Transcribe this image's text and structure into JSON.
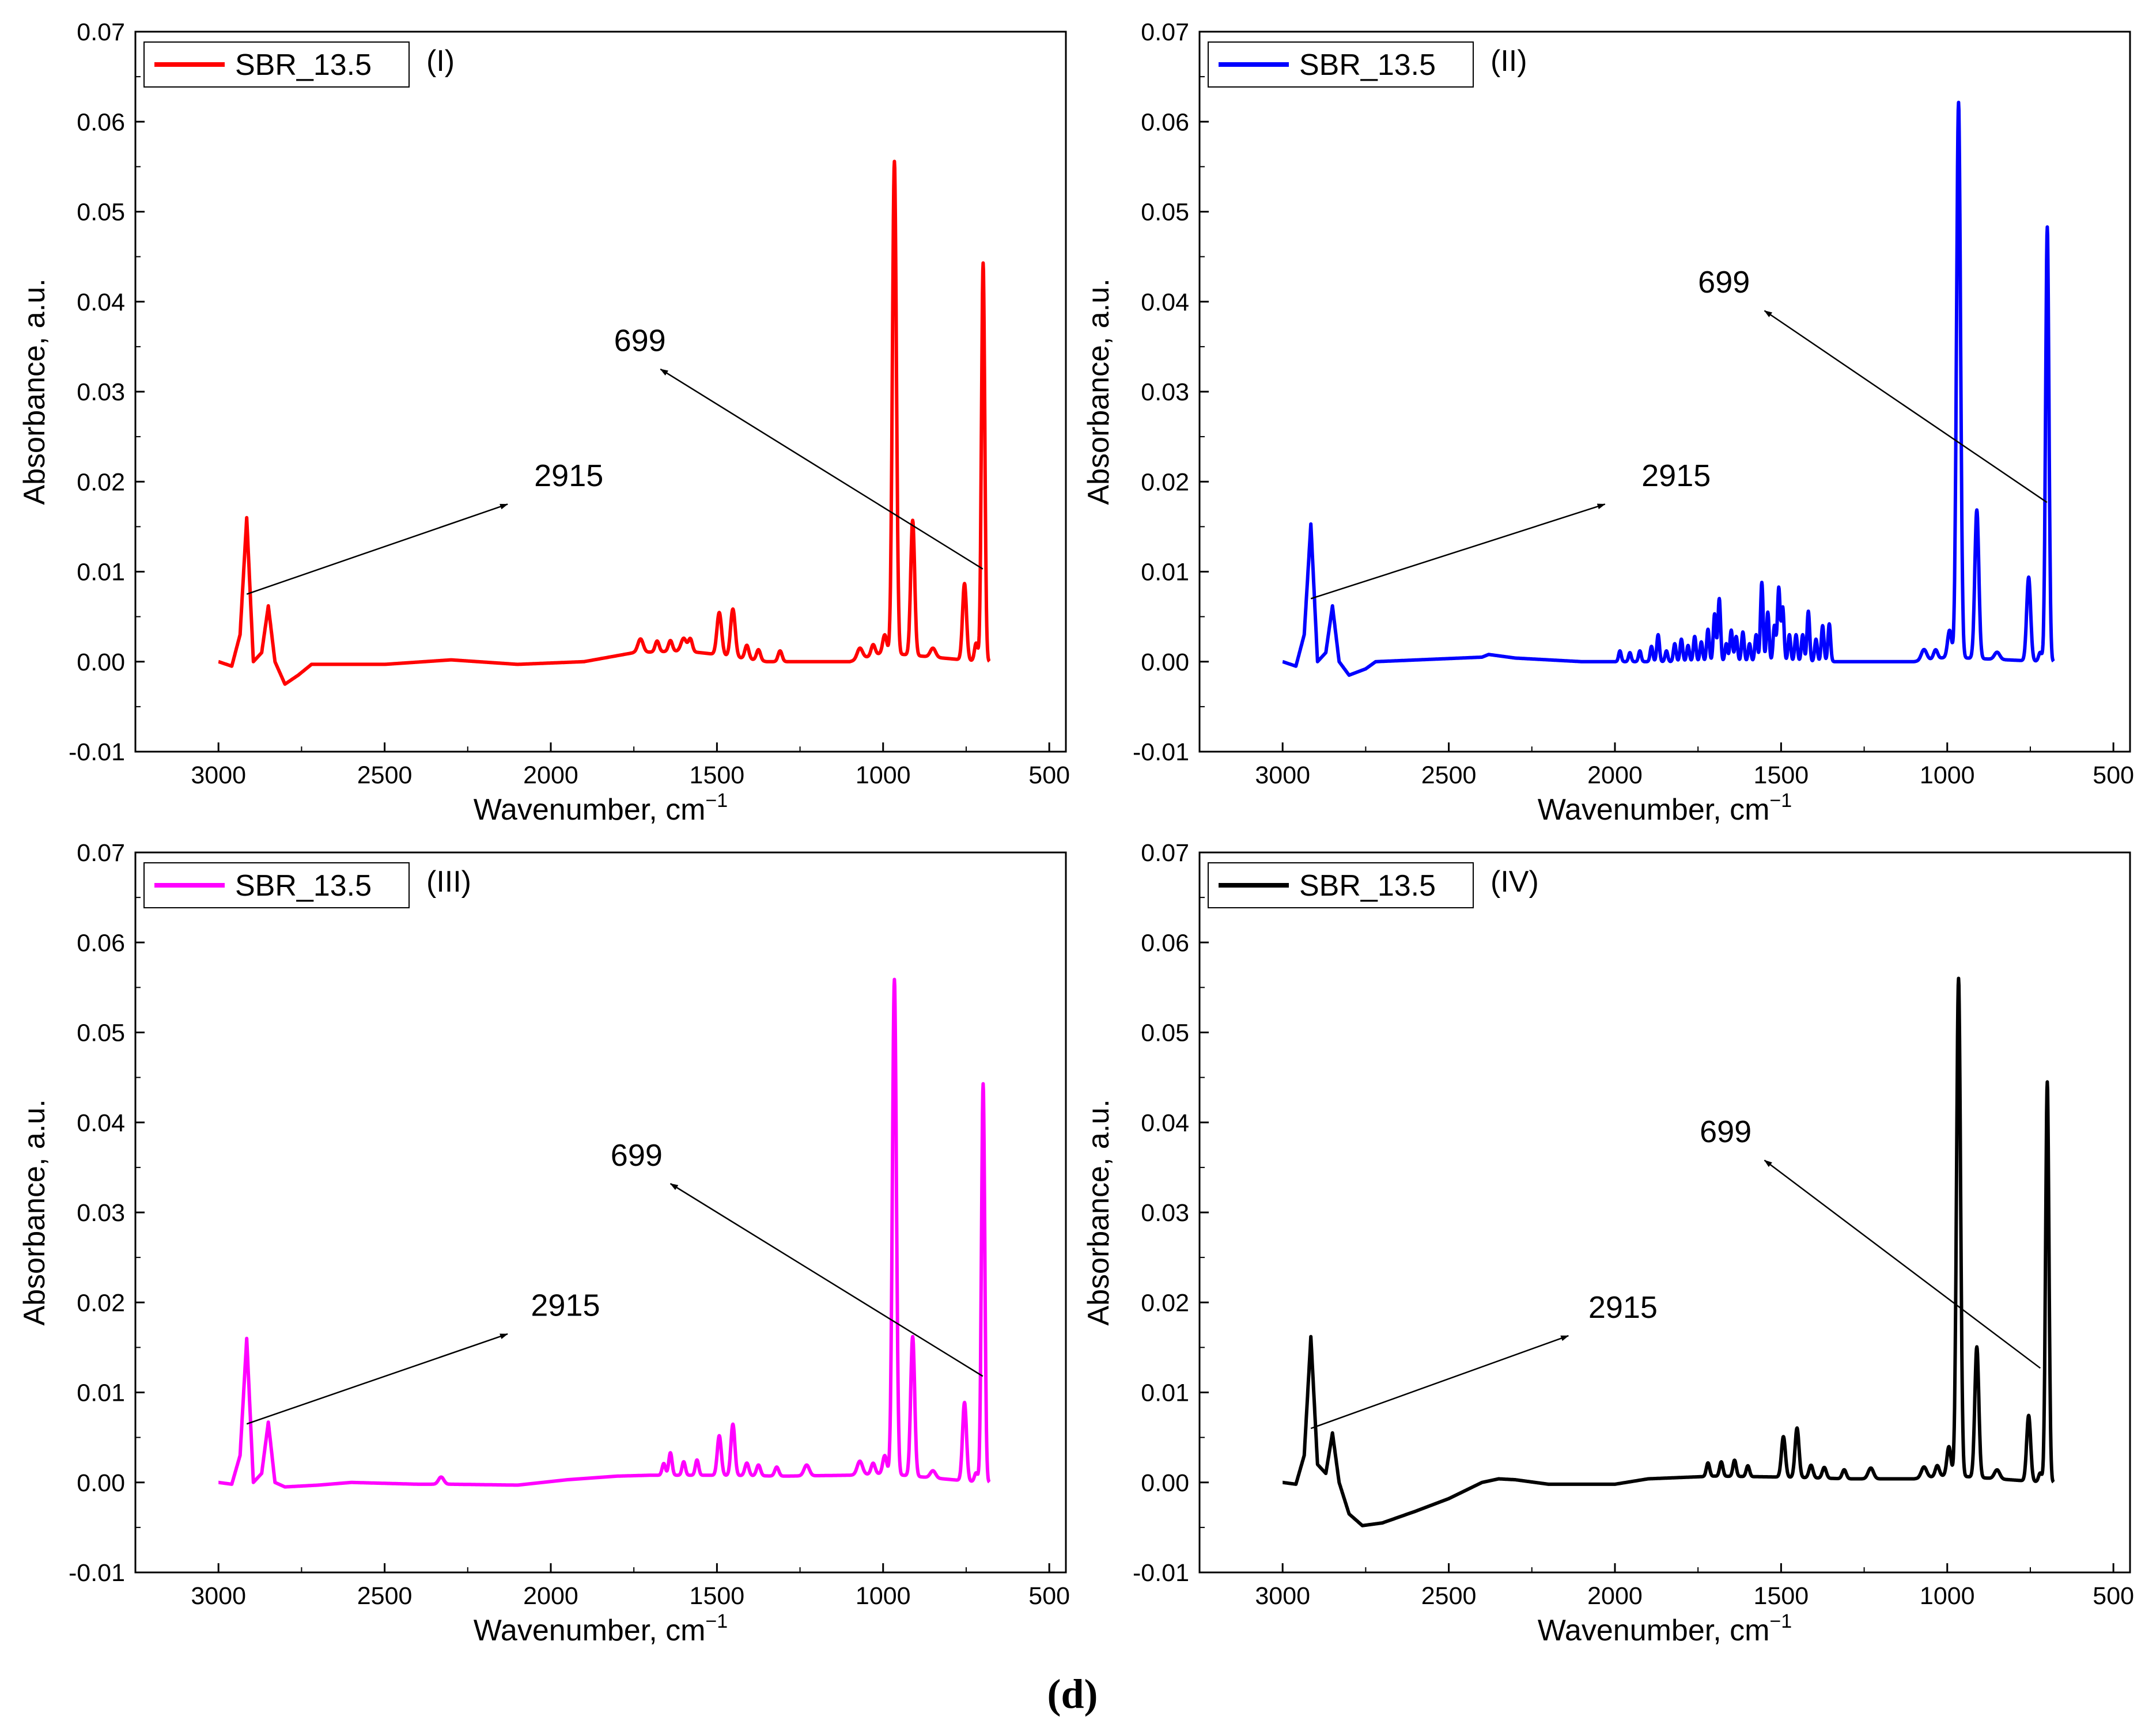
{
  "figure_caption": "(d)",
  "chart_data": [
    {
      "type": "line",
      "panel_tag": "(I)",
      "legend": "SBR_13.5",
      "color": "#ff0000",
      "xlabel": "Wavenumber, cm",
      "xlabel_sup": "−1",
      "ylabel": "Absorbance, a.u.",
      "xlim": [
        3250,
        450
      ],
      "ylim": [
        -0.01,
        0.07
      ],
      "x_ticks": [
        3000,
        2500,
        2000,
        1500,
        1000,
        500
      ],
      "y_ticks": [
        -0.01,
        0.0,
        0.01,
        0.02,
        0.03,
        0.04,
        0.05,
        0.06,
        0.07
      ],
      "y_tick_labels": [
        "-0.01",
        "0.00",
        "0.01",
        "0.02",
        "0.03",
        "0.04",
        "0.05",
        "0.06",
        "0.07"
      ],
      "x_tick_labels": [
        "3000",
        "2500",
        "2000",
        "1500",
        "1000",
        "500"
      ],
      "baseline": [
        [
          3000,
          0
        ],
        [
          2960,
          -0.0005
        ],
        [
          2935,
          0.003
        ],
        [
          2915,
          0.016
        ],
        [
          2895,
          0.0
        ],
        [
          2870,
          0.001
        ],
        [
          2850,
          0.0062
        ],
        [
          2830,
          0.0
        ],
        [
          2800,
          -0.0025
        ],
        [
          2760,
          -0.0015
        ],
        [
          2720,
          -0.0003
        ],
        [
          2500,
          -0.0003
        ],
        [
          2300,
          0.0002
        ],
        [
          2100,
          -0.0003
        ],
        [
          1900,
          0.0
        ],
        [
          1750,
          0.001
        ],
        [
          1600,
          0.0012
        ],
        [
          1500,
          0.0008
        ],
        [
          1350,
          0.0
        ],
        [
          1100,
          0.0
        ],
        [
          1000,
          0.001
        ],
        [
          700,
          0.0
        ]
      ],
      "peaks": [
        [
          1730,
          0.0015,
          8
        ],
        [
          1680,
          0.0012,
          6
        ],
        [
          1640,
          0.0012,
          6
        ],
        [
          1600,
          0.0014,
          8
        ],
        [
          1580,
          0.0014,
          6
        ],
        [
          1493,
          0.0047,
          7
        ],
        [
          1452,
          0.0053,
          7
        ],
        [
          1410,
          0.0015,
          6
        ],
        [
          1375,
          0.0012,
          6
        ],
        [
          1310,
          0.0012,
          6
        ],
        [
          1070,
          0.0012,
          8
        ],
        [
          1030,
          0.0012,
          6
        ],
        [
          995,
          0.002,
          6
        ],
        [
          966,
          0.0547,
          6
        ],
        [
          911,
          0.015,
          6
        ],
        [
          850,
          0.001,
          8
        ],
        [
          755,
          0.0085,
          6
        ],
        [
          720,
          0.002,
          5
        ],
        [
          699,
          0.0443,
          5
        ]
      ],
      "annotations": [
        {
          "text": "2915",
          "from": [
            2915,
            0.0075
          ],
          "to": [
            2130,
            0.0175
          ],
          "label_at": [
            2050,
            0.0195
          ]
        },
        {
          "text": "699",
          "from": [
            700,
            0.0103
          ],
          "to": [
            1670,
            0.0325
          ],
          "label_at": [
            1810,
            0.0345
          ]
        }
      ]
    },
    {
      "type": "line",
      "panel_tag": "(II)",
      "legend": "SBR_13.5",
      "color": "#0000ff",
      "xlabel": "Wavenumber, cm",
      "xlabel_sup": "−1",
      "ylabel": "Absorbance, a.u.",
      "xlim": [
        3250,
        450
      ],
      "ylim": [
        -0.01,
        0.07
      ],
      "x_ticks": [
        3000,
        2500,
        2000,
        1500,
        1000,
        500
      ],
      "y_ticks": [
        -0.01,
        0.0,
        0.01,
        0.02,
        0.03,
        0.04,
        0.05,
        0.06,
        0.07
      ],
      "y_tick_labels": [
        "-0.01",
        "0.00",
        "0.01",
        "0.02",
        "0.03",
        "0.04",
        "0.05",
        "0.06",
        "0.07"
      ],
      "x_tick_labels": [
        "3000",
        "2500",
        "2000",
        "1500",
        "1000",
        "500"
      ],
      "baseline": [
        [
          3000,
          0
        ],
        [
          2960,
          -0.0005
        ],
        [
          2935,
          0.003
        ],
        [
          2915,
          0.0153
        ],
        [
          2895,
          0.0
        ],
        [
          2870,
          0.001
        ],
        [
          2850,
          0.0062
        ],
        [
          2830,
          0.0
        ],
        [
          2800,
          -0.0015
        ],
        [
          2750,
          -0.0008
        ],
        [
          2720,
          0.0
        ],
        [
          2400,
          0.0005
        ],
        [
          2380,
          0.0008
        ],
        [
          2300,
          0.0004
        ],
        [
          2100,
          0.0
        ],
        [
          1900,
          0.0
        ],
        [
          1300,
          0.0
        ],
        [
          1100,
          0.0
        ],
        [
          1000,
          0.0005
        ],
        [
          700,
          0.0
        ]
      ],
      "peaks": [
        [
          1985,
          0.0012,
          4
        ],
        [
          1955,
          0.001,
          4
        ],
        [
          1925,
          0.0012,
          4
        ],
        [
          1890,
          0.0017,
          4
        ],
        [
          1870,
          0.003,
          4
        ],
        [
          1845,
          0.0012,
          4
        ],
        [
          1820,
          0.002,
          4
        ],
        [
          1800,
          0.0025,
          4
        ],
        [
          1780,
          0.0018,
          4
        ],
        [
          1760,
          0.0028,
          4
        ],
        [
          1740,
          0.0022,
          4
        ],
        [
          1720,
          0.0036,
          4
        ],
        [
          1700,
          0.0053,
          4
        ],
        [
          1686,
          0.007,
          4
        ],
        [
          1665,
          0.002,
          4
        ],
        [
          1650,
          0.0035,
          4
        ],
        [
          1635,
          0.0028,
          4
        ],
        [
          1615,
          0.0033,
          4
        ],
        [
          1595,
          0.002,
          4
        ],
        [
          1575,
          0.003,
          4
        ],
        [
          1558,
          0.0088,
          4
        ],
        [
          1540,
          0.0055,
          4
        ],
        [
          1520,
          0.004,
          4
        ],
        [
          1507,
          0.0082,
          4
        ],
        [
          1495,
          0.006,
          4
        ],
        [
          1475,
          0.003,
          4
        ],
        [
          1455,
          0.003,
          4
        ],
        [
          1435,
          0.003,
          4
        ],
        [
          1418,
          0.0056,
          4
        ],
        [
          1395,
          0.0025,
          4
        ],
        [
          1375,
          0.004,
          4
        ],
        [
          1355,
          0.0042,
          4
        ],
        [
          1070,
          0.0012,
          8
        ],
        [
          1035,
          0.001,
          6
        ],
        [
          993,
          0.003,
          6
        ],
        [
          966,
          0.0617,
          6
        ],
        [
          911,
          0.0165,
          6
        ],
        [
          850,
          0.0008,
          8
        ],
        [
          755,
          0.0093,
          6
        ],
        [
          720,
          0.001,
          5
        ],
        [
          699,
          0.0483,
          5
        ]
      ],
      "annotations": [
        {
          "text": "2915",
          "from": [
            2915,
            0.007
          ],
          "to": [
            2030,
            0.0175
          ],
          "label_at": [
            1920,
            0.0195
          ]
        },
        {
          "text": "699",
          "from": [
            700,
            0.0177
          ],
          "to": [
            1550,
            0.039
          ],
          "label_at": [
            1750,
            0.041
          ]
        }
      ]
    },
    {
      "type": "line",
      "panel_tag": "(III)",
      "legend": "SBR_13.5",
      "color": "#ff00ff",
      "xlabel": "Wavenumber, cm",
      "xlabel_sup": "−1",
      "ylabel": "Absorbance, a.u.",
      "xlim": [
        3250,
        450
      ],
      "ylim": [
        -0.01,
        0.07
      ],
      "x_ticks": [
        3000,
        2500,
        2000,
        1500,
        1000,
        500
      ],
      "y_ticks": [
        -0.01,
        0.0,
        0.01,
        0.02,
        0.03,
        0.04,
        0.05,
        0.06,
        0.07
      ],
      "y_tick_labels": [
        "-0.01",
        "0.00",
        "0.01",
        "0.02",
        "0.03",
        "0.04",
        "0.05",
        "0.06",
        "0.07"
      ],
      "x_tick_labels": [
        "3000",
        "2500",
        "2000",
        "1500",
        "1000",
        "500"
      ],
      "baseline": [
        [
          3000,
          0
        ],
        [
          2960,
          -0.0002
        ],
        [
          2935,
          0.003
        ],
        [
          2915,
          0.016
        ],
        [
          2895,
          0.0
        ],
        [
          2870,
          0.001
        ],
        [
          2850,
          0.0067
        ],
        [
          2830,
          0.0
        ],
        [
          2800,
          -0.0005
        ],
        [
          2700,
          -0.0003
        ],
        [
          2600,
          0.0
        ],
        [
          2400,
          -0.0002
        ],
        [
          2300,
          -0.0002
        ],
        [
          2100,
          -0.0003
        ],
        [
          1950,
          0.0003
        ],
        [
          1800,
          0.0007
        ],
        [
          1700,
          0.0008
        ],
        [
          1500,
          0.0008
        ],
        [
          1300,
          0.0007
        ],
        [
          1100,
          0.0008
        ],
        [
          1000,
          0.001
        ],
        [
          700,
          0.0
        ]
      ],
      "peaks": [
        [
          2330,
          0.0008,
          8
        ],
        [
          1660,
          0.0013,
          5
        ],
        [
          1640,
          0.0025,
          5
        ],
        [
          1600,
          0.0015,
          5
        ],
        [
          1560,
          0.0017,
          5
        ],
        [
          1493,
          0.0044,
          6
        ],
        [
          1452,
          0.0057,
          6
        ],
        [
          1410,
          0.0014,
          6
        ],
        [
          1375,
          0.0012,
          6
        ],
        [
          1320,
          0.001,
          6
        ],
        [
          1230,
          0.0012,
          8
        ],
        [
          1070,
          0.0015,
          8
        ],
        [
          1030,
          0.0012,
          6
        ],
        [
          995,
          0.002,
          6
        ],
        [
          966,
          0.055,
          6
        ],
        [
          911,
          0.0155,
          6
        ],
        [
          850,
          0.0008,
          8
        ],
        [
          755,
          0.0087,
          6
        ],
        [
          720,
          0.001,
          5
        ],
        [
          699,
          0.0443,
          5
        ]
      ],
      "annotations": [
        {
          "text": "2915",
          "from": [
            2915,
            0.0065
          ],
          "to": [
            2130,
            0.0165
          ],
          "label_at": [
            2060,
            0.0185
          ]
        },
        {
          "text": "699",
          "from": [
            700,
            0.0118
          ],
          "to": [
            1640,
            0.0332
          ],
          "label_at": [
            1820,
            0.0352
          ]
        }
      ]
    },
    {
      "type": "line",
      "panel_tag": "(IV)",
      "legend": "SBR_13.5",
      "color": "#000000",
      "xlabel": "Wavenumber, cm",
      "xlabel_sup": "−1",
      "ylabel": "Absorbance, a.u.",
      "xlim": [
        3250,
        450
      ],
      "ylim": [
        -0.01,
        0.07
      ],
      "x_ticks": [
        3000,
        2500,
        2000,
        1500,
        1000,
        500
      ],
      "y_ticks": [
        -0.01,
        0.0,
        0.01,
        0.02,
        0.03,
        0.04,
        0.05,
        0.06,
        0.07
      ],
      "y_tick_labels": [
        "-0.01",
        "0.00",
        "0.01",
        "0.02",
        "0.03",
        "0.04",
        "0.05",
        "0.06",
        "0.07"
      ],
      "x_tick_labels": [
        "3000",
        "2500",
        "2000",
        "1500",
        "1000",
        "500"
      ],
      "baseline": [
        [
          3000,
          0
        ],
        [
          2960,
          -0.0002
        ],
        [
          2935,
          0.003
        ],
        [
          2915,
          0.0162
        ],
        [
          2895,
          0.002
        ],
        [
          2870,
          0.001
        ],
        [
          2850,
          0.0055
        ],
        [
          2830,
          0.0
        ],
        [
          2800,
          -0.0035
        ],
        [
          2760,
          -0.0048
        ],
        [
          2700,
          -0.0045
        ],
        [
          2600,
          -0.0032
        ],
        [
          2500,
          -0.0018
        ],
        [
          2400,
          0.0
        ],
        [
          2350,
          0.0004
        ],
        [
          2300,
          0.0003
        ],
        [
          2200,
          -0.0002
        ],
        [
          2000,
          -0.0002
        ],
        [
          1900,
          0.0004
        ],
        [
          1700,
          0.0007
        ],
        [
          1500,
          0.0006
        ],
        [
          1300,
          0.0004
        ],
        [
          1100,
          0.0004
        ],
        [
          1000,
          0.0008
        ],
        [
          700,
          0.0
        ]
      ],
      "peaks": [
        [
          1720,
          0.0015,
          5
        ],
        [
          1680,
          0.0016,
          5
        ],
        [
          1640,
          0.0018,
          5
        ],
        [
          1600,
          0.0012,
          5
        ],
        [
          1493,
          0.0045,
          6
        ],
        [
          1452,
          0.0055,
          6
        ],
        [
          1410,
          0.0014,
          6
        ],
        [
          1370,
          0.0012,
          6
        ],
        [
          1310,
          0.001,
          6
        ],
        [
          1230,
          0.0012,
          8
        ],
        [
          1070,
          0.0012,
          8
        ],
        [
          1030,
          0.0012,
          6
        ],
        [
          995,
          0.0032,
          6
        ],
        [
          966,
          0.0553,
          6
        ],
        [
          911,
          0.0145,
          6
        ],
        [
          850,
          0.001,
          8
        ],
        [
          755,
          0.0073,
          6
        ],
        [
          720,
          0.001,
          5
        ],
        [
          699,
          0.0445,
          5
        ]
      ],
      "annotations": [
        {
          "text": "2915",
          "from": [
            2915,
            0.006
          ],
          "to": [
            2140,
            0.0163
          ],
          "label_at": [
            2080,
            0.0183
          ]
        },
        {
          "text": "699",
          "from": [
            720,
            0.0127
          ],
          "to": [
            1550,
            0.0358
          ],
          "label_at": [
            1745,
            0.0378
          ]
        }
      ]
    }
  ]
}
